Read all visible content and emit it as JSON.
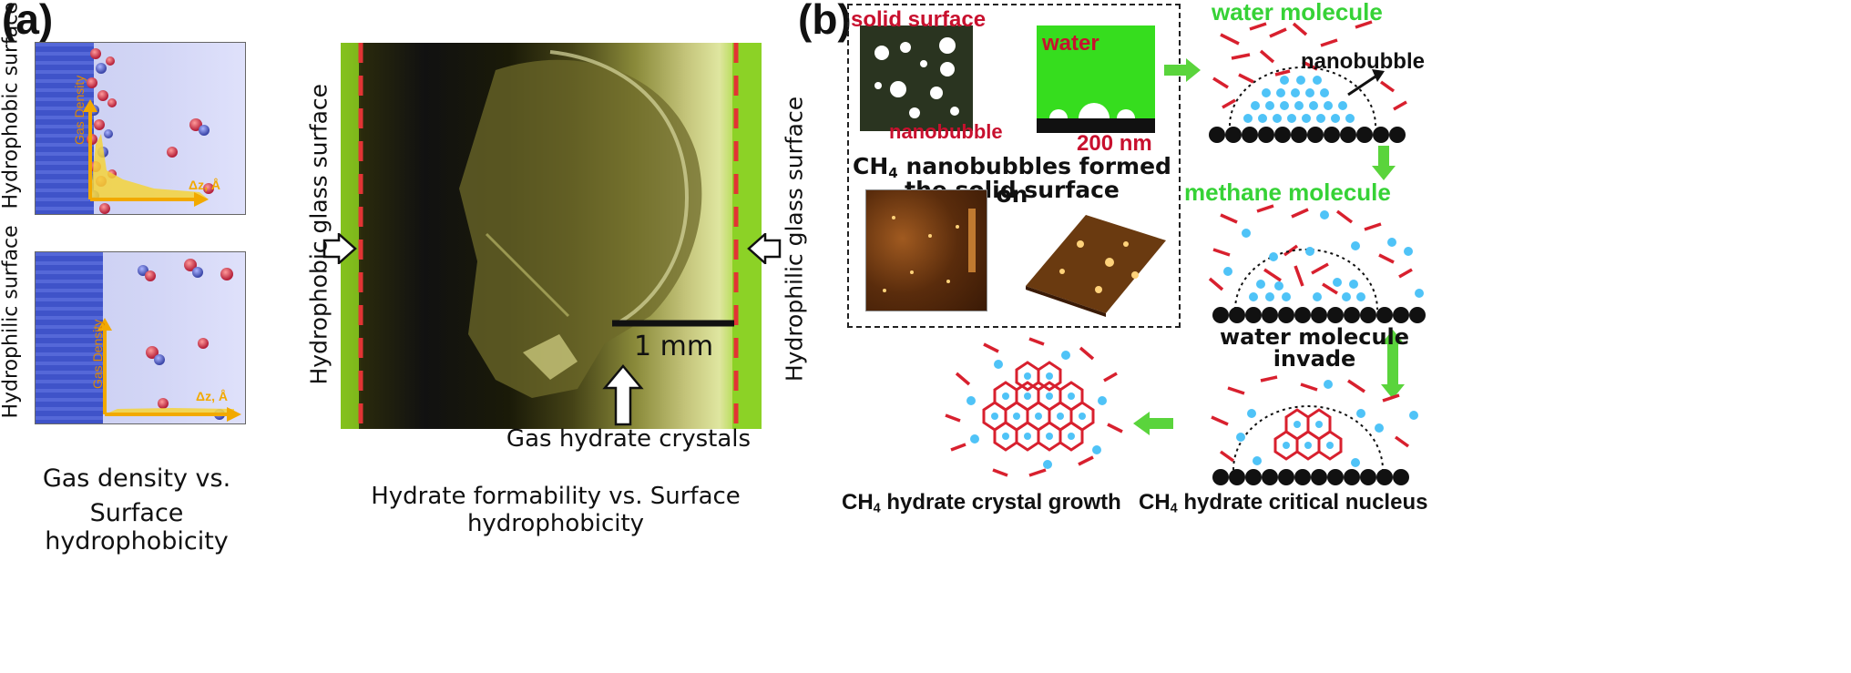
{
  "panel_a": {
    "label": "(a)",
    "hydrophobic_surface_label": "Hydrophobic surface",
    "hydrophilic_surface_label": "Hydrophilic surface",
    "y_axis_label": "Gas Density",
    "x_axis_label": "Δz, Å",
    "caption_line1": "Gas density vs.",
    "caption_line2": "Surface hydrophobicity",
    "photo": {
      "left_wall_label": "Hydrophobic glass surface",
      "right_wall_label": "Hydrophilic glass surface",
      "scale_bar": "1 mm",
      "crystals_label": "Gas hydrate crystals",
      "caption": "Hydrate formability vs. Surface hydrophobicity"
    }
  },
  "panel_b": {
    "label": "(b)",
    "solid_surface": "solid surface",
    "nanobubble_inset": "nanobubble",
    "water_inset": "water",
    "scale": "200 nm",
    "nanobubbles_caption_pre": "CH",
    "nanobubbles_caption_sub": "4",
    "nanobubbles_caption_post": " nanobubbles formed on",
    "nanobubbles_caption_line2": "the solid surface",
    "water_molecule": "water molecule",
    "nanobubble": "nanobubble",
    "methane_molecule": "methane molecule",
    "water_invade_line1": "water molecule",
    "water_invade_line2": "invade",
    "growth_pre": "CH",
    "growth_sub": "4",
    "growth_post": " hydrate crystal growth",
    "nucleus_pre": "CH",
    "nucleus_sub": "4",
    "nucleus_post": " hydrate critical nucleus"
  },
  "colors": {
    "red": "#c8102e",
    "green": "#36d236",
    "blue_dot": "#4fc3f7",
    "arrow_green": "#5ad43c",
    "axis_orange": "#f2a900"
  }
}
